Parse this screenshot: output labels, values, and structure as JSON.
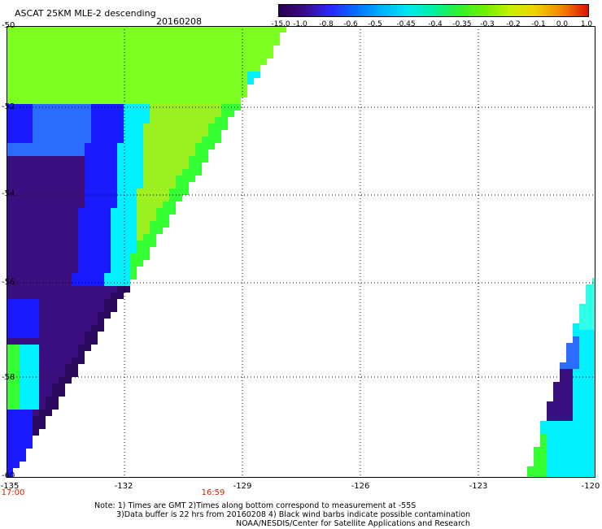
{
  "header": {
    "title": "ASCAT 25KM MLE-2 descending",
    "date": "20160208"
  },
  "colorbar": {
    "labels": [
      "-15.0",
      "-1.0",
      "-0.8",
      "-0.6",
      "-0.5",
      "-0.45",
      "-0.4",
      "-0.35",
      "-0.3",
      "-0.2",
      "-0.1",
      "0.0",
      "1.0"
    ],
    "colors": [
      "#2a0050",
      "#3a0a8a",
      "#2a2aff",
      "#0070ff",
      "#00b0ff",
      "#00e8f0",
      "#00f0a0",
      "#30f030",
      "#70f000",
      "#c8f000",
      "#f0d000",
      "#f08000",
      "#e01000"
    ]
  },
  "axes": {
    "lat_labels": [
      "-50",
      "-52",
      "-54",
      "-56",
      "-58",
      "-60"
    ],
    "lon_labels": [
      "-135",
      "-132",
      "-129",
      "-126",
      "-123",
      "-120"
    ],
    "time_labels": [
      "17:00",
      "16:59"
    ]
  },
  "notes": {
    "line1": "Note: 1) Times are GMT 2)Times along bottom correspond to measurement at -55S",
    "line2": "3)Data buffer is 22 hrs from 20160208 4) Black wind barbs indicate possible contamination",
    "line3": "NOAA/NESDIS/Center for Satellite Applications and Research"
  }
}
